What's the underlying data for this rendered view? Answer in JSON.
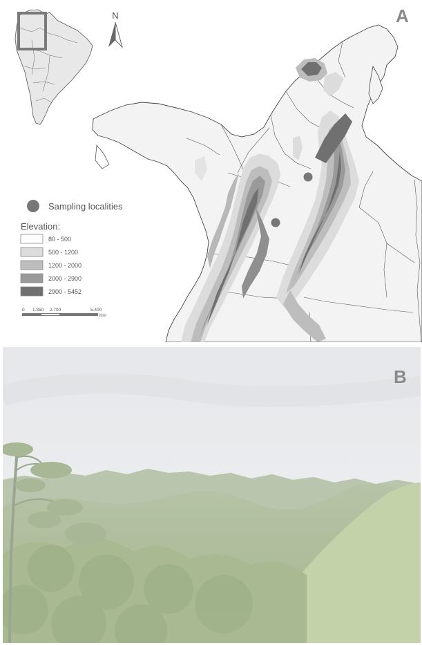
{
  "panel_a": {
    "label": "A",
    "north_label": "N",
    "legend": {
      "sampling_label": "Sampling localities",
      "elevation_title": "Elevation:",
      "classes": [
        {
          "label": "80 - 500",
          "color": "#ffffff"
        },
        {
          "label": "500 - 1200",
          "color": "#dcdcdc"
        },
        {
          "label": "1200 - 2000",
          "color": "#bdbdbd"
        },
        {
          "label": "2000 - 2900",
          "color": "#9a9a9a"
        },
        {
          "label": "2900 - 5452",
          "color": "#707070"
        }
      ]
    },
    "scale_bar": {
      "ticks": [
        "0",
        "1.350",
        "2.700",
        "5.400"
      ],
      "unit": "Km"
    },
    "colors": {
      "land": "#f2f2f2",
      "borders": "#444444",
      "sampling_point": "#777777",
      "inset_box": "#7a7a7a"
    }
  },
  "panel_b": {
    "label": "B",
    "colors": {
      "sky": "#ecedef",
      "forest_far": "#b9c5ad",
      "forest_near": "#aec09a",
      "slope": "#c3d1a8"
    }
  }
}
